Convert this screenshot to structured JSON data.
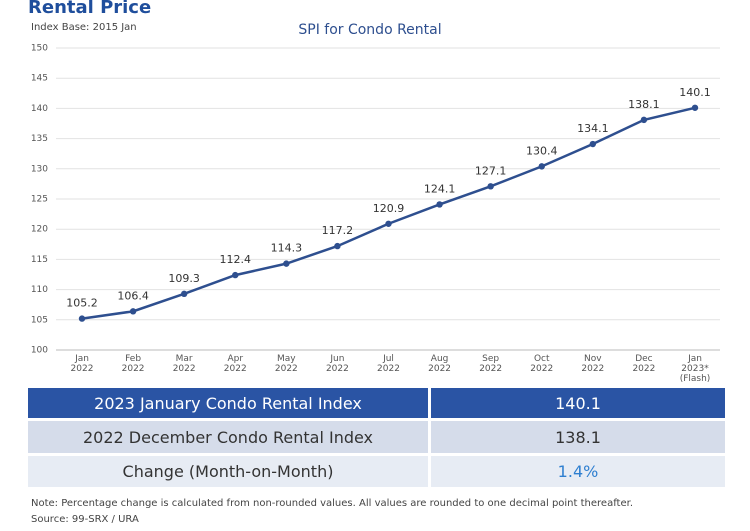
{
  "header": {
    "title": "Rental Price",
    "subtitle": "Index Base: 2015 Jan"
  },
  "chart_data": {
    "type": "line",
    "title": "SPI for Condo Rental",
    "categories": [
      "Jan\n2022",
      "Feb\n2022",
      "Mar\n2022",
      "Apr\n2022",
      "May\n2022",
      "Jun\n2022",
      "Jul\n2022",
      "Aug\n2022",
      "Sep\n2022",
      "Oct\n2022",
      "Nov\n2022",
      "Dec\n2022",
      "Jan\n2023*\n(Flash)"
    ],
    "values": [
      105.2,
      106.4,
      109.3,
      112.4,
      114.3,
      117.2,
      120.9,
      124.1,
      127.1,
      130.4,
      134.1,
      138.1,
      140.1
    ],
    "color": "#2e4f8f",
    "ylim": [
      100,
      150
    ],
    "yticks": [
      100,
      105,
      110,
      115,
      120,
      125,
      130,
      135,
      140,
      145,
      150
    ],
    "grid": true
  },
  "table": {
    "rows": [
      [
        "2023 January Condo Rental Index",
        "140.1"
      ],
      [
        "2022 December Condo Rental Index",
        "138.1"
      ],
      [
        "Change (Month-on-Month)",
        "1.4%"
      ]
    ]
  },
  "notes": [
    "Note: Percentage change is calculated from non-rounded values.  All values are rounded to one decimal point thereafter.",
    "Source: 99-SRX / URA"
  ]
}
